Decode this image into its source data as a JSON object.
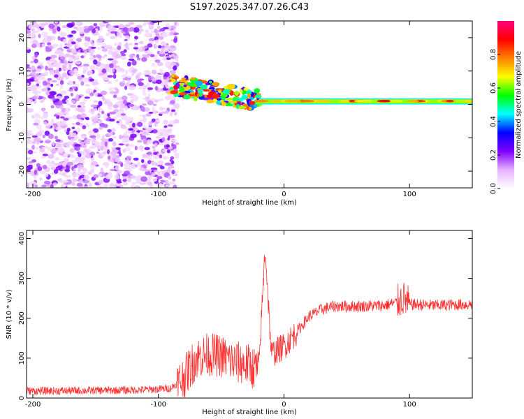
{
  "figure": {
    "title": "S197.2025.347.07.26.C43"
  },
  "chart_data": [
    {
      "type": "heatmap",
      "title": "S197.2025.347.07.26.C43",
      "xlabel": "Height of straight line (km)",
      "ylabel": "Frequency (Hz)",
      "xlim": [
        -205,
        150
      ],
      "ylim": [
        -25,
        25
      ],
      "xticks": [
        -200,
        -100,
        0,
        100
      ],
      "yticks": [
        -20,
        -10,
        0,
        10,
        20
      ],
      "colorbar": {
        "label": "Normalized spectral amplitude",
        "range": [
          0.0,
          1.0
        ],
        "ticks": [
          0.0,
          0.2,
          0.4,
          0.6,
          0.8
        ],
        "tick_labels": [
          "0.0",
          "0.2",
          "0.4",
          "0.6",
          "0.8"
        ],
        "colormap": [
          "#ffffff",
          "#e6b3ff",
          "#8000ff",
          "#0000ff",
          "#00ffff",
          "#00ff00",
          "#ffff00",
          "#ff8000",
          "#ff0000",
          "#ff0080"
        ]
      },
      "features": [
        {
          "name": "scattered noise",
          "x_range": [
            -205,
            -85
          ],
          "y_range": [
            -25,
            25
          ],
          "amplitude": [
            0.05,
            0.25
          ]
        },
        {
          "name": "transition blobs",
          "x_range": [
            -90,
            -20
          ],
          "y_range": [
            -5,
            8
          ],
          "amplitude": [
            0.2,
            0.9
          ]
        },
        {
          "name": "stable band",
          "x_range": [
            -20,
            150
          ],
          "y_range": [
            0.3,
            1.5
          ],
          "center_hz": 1.0,
          "amplitude": [
            0.6,
            0.9
          ]
        }
      ]
    },
    {
      "type": "line",
      "xlabel": "Height of straight line (km)",
      "ylabel": "SNR (10 * v/v)",
      "xlim": [
        -205,
        150
      ],
      "ylim": [
        0,
        420
      ],
      "xticks": [
        -200,
        -100,
        0,
        100
      ],
      "yticks": [
        0,
        100,
        200,
        300,
        400
      ],
      "color": "#ff3030",
      "series": [
        {
          "name": "SNR",
          "x": [
            -205,
            -180,
            -150,
            -120,
            -100,
            -90,
            -80,
            -70,
            -60,
            -50,
            -40,
            -30,
            -20,
            -15,
            -10,
            0,
            10,
            20,
            30,
            40,
            60,
            80,
            90,
            95,
            100,
            120,
            150
          ],
          "y": [
            18,
            18,
            19,
            20,
            22,
            25,
            50,
            100,
            110,
            105,
            90,
            85,
            70,
            380,
            110,
            130,
            165,
            205,
            222,
            230,
            230,
            232,
            240,
            250,
            235,
            232,
            235
          ]
        }
      ]
    }
  ]
}
